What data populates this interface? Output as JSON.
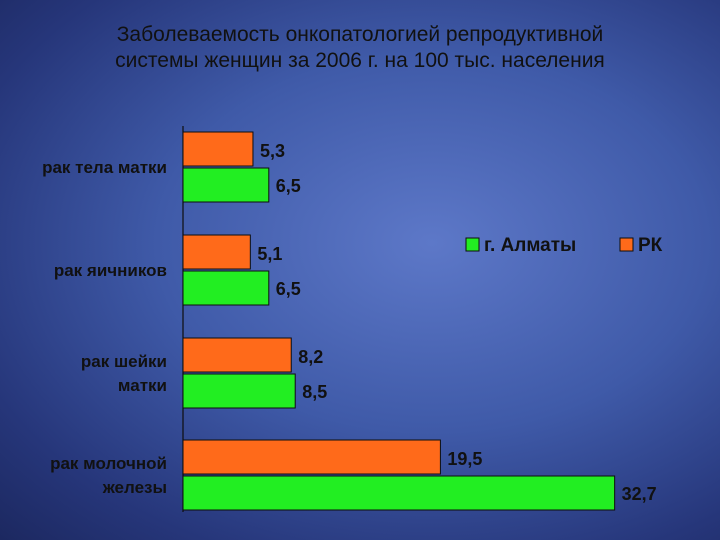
{
  "title_lines": [
    "Заболеваемость онкопатологией репродуктивной",
    "системы женщин за 2006 г.  на 100 тыс. населения"
  ],
  "chart_data": {
    "type": "bar",
    "orientation": "horizontal",
    "categories": [
      [
        "рак тела матки"
      ],
      [
        "рак яичников"
      ],
      [
        "рак шейки",
        "матки"
      ],
      [
        "рак молочной",
        "железы"
      ]
    ],
    "series": [
      {
        "name": "РК",
        "color": "#ff6a1a",
        "values": [
          5.3,
          5.1,
          8.2,
          19.5
        ],
        "labels": [
          "5,3",
          "5,1",
          "8,2",
          "19,5"
        ]
      },
      {
        "name": "г. Алматы",
        "color": "#22ee22",
        "values": [
          6.5,
          6.5,
          8.5,
          32.7
        ],
        "labels": [
          "6,5",
          "6,5",
          "8,5",
          "32,7"
        ]
      }
    ],
    "legend": {
      "position": "top-right",
      "order": [
        "г. Алматы",
        "РК"
      ]
    },
    "grid": false
  }
}
